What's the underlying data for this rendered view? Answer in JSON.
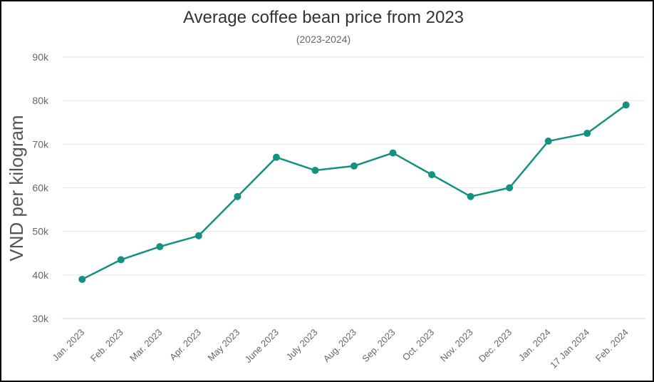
{
  "chart_data": {
    "type": "line",
    "title": "Average coffee bean price from 2023",
    "subtitle": "(2023-2024)",
    "ylabel": "VND per kilogram",
    "xlabel": "",
    "categories": [
      "Jan. 2023",
      "Feb. 2023",
      "Mar. 2023",
      "Apr. 2023",
      "May 2023",
      "June 2023",
      "July 2023",
      "Aug. 2023",
      "Sep. 2023",
      "Oct. 2023",
      "Nov. 2023",
      "Dec. 2023",
      "Jan. 2024",
      "17 Jan 2024",
      "Feb. 2024"
    ],
    "series": [
      {
        "values": [
          39000,
          43500,
          46500,
          49000,
          58000,
          67000,
          64000,
          65000,
          68000,
          63000,
          58000,
          60000,
          70700,
          72500,
          79000
        ]
      }
    ],
    "ylim": [
      30000,
      90000
    ],
    "yticks": [
      {
        "value": 30000,
        "label": "30k"
      },
      {
        "value": 40000,
        "label": "40k"
      },
      {
        "value": 50000,
        "label": "50k"
      },
      {
        "value": 60000,
        "label": "60k"
      },
      {
        "value": 70000,
        "label": "70k"
      },
      {
        "value": 80000,
        "label": "80k"
      },
      {
        "value": 90000,
        "label": "90k"
      }
    ],
    "grid": true,
    "legend": "none",
    "colors": {
      "line": "#14917f",
      "grid": "#e6e6e6",
      "axis": "#ccd6eb"
    }
  }
}
